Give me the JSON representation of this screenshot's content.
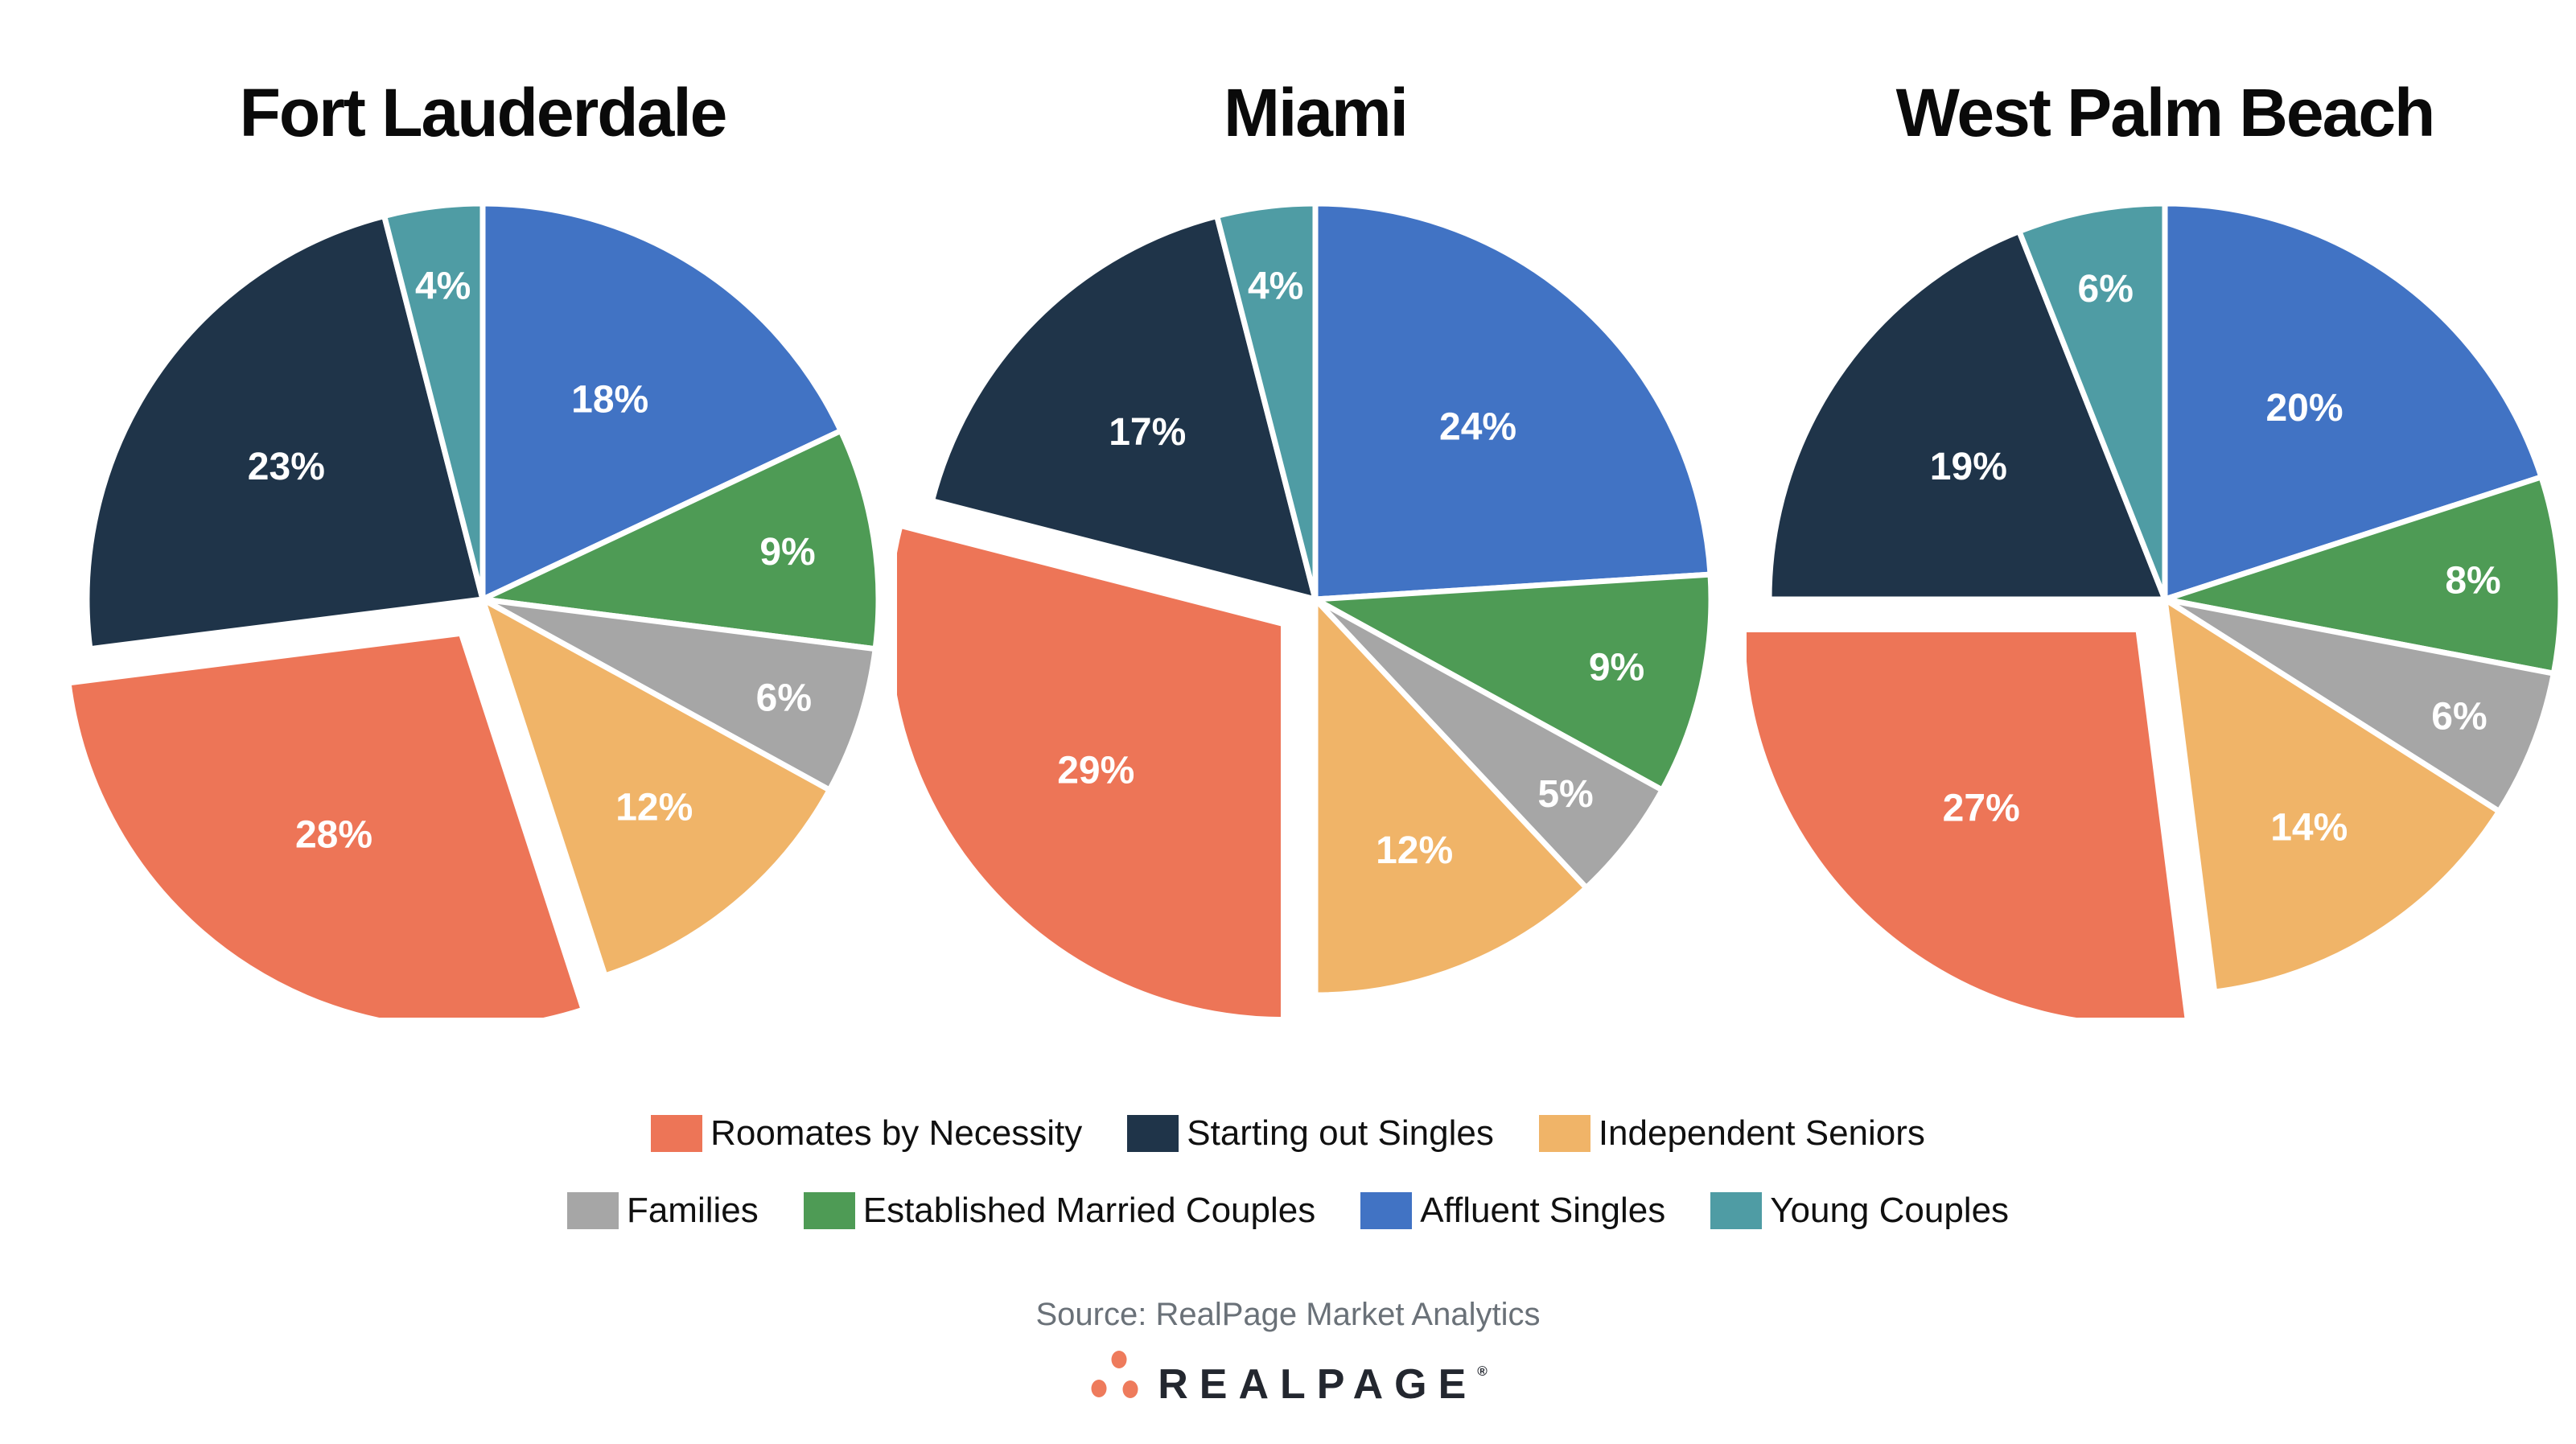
{
  "palette": {
    "Roomates by Necessity": "#ED7557",
    "Starting out Singles": "#1F3449",
    "Independent Seniors": "#F0B468",
    "Families": "#A6A6A6",
    "Established Married Couples": "#4E9B55",
    "Affluent Singles": "#4173C4",
    "Young Couples": "#4F9CA4"
  },
  "chart_data": [
    {
      "type": "pie",
      "title": "Fort Lauderdale",
      "start_angle_deg": 0,
      "direction": "clockwise",
      "value_suffix": "%",
      "slices": [
        {
          "label": "Affluent Singles",
          "value": 18,
          "exploded": false
        },
        {
          "label": "Established Married Couples",
          "value": 9,
          "exploded": false
        },
        {
          "label": "Families",
          "value": 6,
          "exploded": false
        },
        {
          "label": "Independent Seniors",
          "value": 12,
          "exploded": false
        },
        {
          "label": "Roomates by Necessity",
          "value": 28,
          "exploded": true
        },
        {
          "label": "Starting out Singles",
          "value": 23,
          "exploded": false
        },
        {
          "label": "Young Couples",
          "value": 4,
          "exploded": false
        }
      ]
    },
    {
      "type": "pie",
      "title": "Miami",
      "start_angle_deg": 0,
      "direction": "clockwise",
      "value_suffix": "%",
      "slices": [
        {
          "label": "Affluent Singles",
          "value": 24,
          "exploded": false
        },
        {
          "label": "Established Married Couples",
          "value": 9,
          "exploded": false
        },
        {
          "label": "Families",
          "value": 5,
          "exploded": false
        },
        {
          "label": "Independent Seniors",
          "value": 12,
          "exploded": false
        },
        {
          "label": "Roomates by Necessity",
          "value": 29,
          "exploded": true
        },
        {
          "label": "Starting out Singles",
          "value": 17,
          "exploded": false
        },
        {
          "label": "Young Couples",
          "value": 4,
          "exploded": false
        }
      ]
    },
    {
      "type": "pie",
      "title": "West Palm Beach",
      "start_angle_deg": 0,
      "direction": "clockwise",
      "value_suffix": "%",
      "slices": [
        {
          "label": "Affluent Singles",
          "value": 20,
          "exploded": false
        },
        {
          "label": "Established Married Couples",
          "value": 8,
          "exploded": false
        },
        {
          "label": "Families",
          "value": 6,
          "exploded": false
        },
        {
          "label": "Independent Seniors",
          "value": 14,
          "exploded": false
        },
        {
          "label": "Roomates by Necessity",
          "value": 27,
          "exploded": true
        },
        {
          "label": "Starting out Singles",
          "value": 19,
          "exploded": false
        },
        {
          "label": "Young Couples",
          "value": 6,
          "exploded": false
        }
      ]
    }
  ],
  "legend": {
    "rows": [
      [
        "Roomates by Necessity",
        "Starting out Singles",
        "Independent Seniors"
      ],
      [
        "Families",
        "Established Married Couples",
        "Affluent Singles",
        "Young Couples"
      ]
    ]
  },
  "source": {
    "text": "Source: RealPage Market Analytics"
  },
  "logo": {
    "text": "REALPAGE",
    "registered": "®",
    "dot_color": "#EE7B5C"
  }
}
